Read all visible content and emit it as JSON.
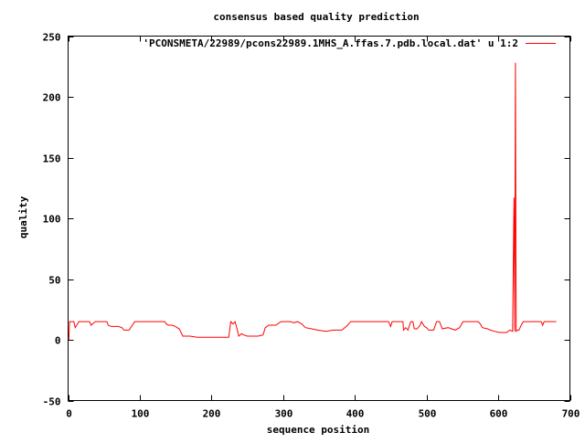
{
  "chart_data": {
    "type": "line",
    "title": "consensus based quality prediction",
    "xlabel": "sequence position",
    "ylabel": "quality",
    "xlim": [
      0,
      700
    ],
    "ylim": [
      -50,
      250
    ],
    "xticks": [
      0,
      100,
      200,
      300,
      400,
      500,
      600,
      700
    ],
    "yticks": [
      -50,
      0,
      50,
      100,
      150,
      200,
      250
    ],
    "grid": false,
    "legend_position": "top-right",
    "series": [
      {
        "name": "'PCONSMETA/22989/pcons22989.1MHS_A.ffas.7.pdb.local.dat' u 1:2",
        "color": "#ff0000",
        "x": [
          1,
          2,
          3,
          8,
          10,
          12,
          15,
          30,
          32,
          38,
          40,
          54,
          56,
          60,
          65,
          70,
          75,
          78,
          81,
          85,
          93,
          135,
          137,
          140,
          145,
          150,
          152,
          155,
          160,
          170,
          180,
          200,
          215,
          224,
          227,
          230,
          233,
          236,
          238,
          242,
          245,
          250,
          265,
          272,
          275,
          280,
          290,
          297,
          310,
          315,
          320,
          326,
          331,
          340,
          348,
          360,
          370,
          382,
          386,
          390,
          394,
          447,
          450,
          452,
          455,
          467,
          468,
          471,
          474,
          478,
          481,
          483,
          487,
          491,
          493,
          497,
          500,
          503,
          510,
          514,
          518,
          522,
          530,
          540,
          546,
          551,
          572,
          575,
          578,
          585,
          589,
          595,
          601,
          612,
          616,
          620,
          622,
          623,
          624,
          625,
          627,
          629,
          632,
          635,
          660,
          662,
          664,
          681
        ],
        "y": [
          0,
          15,
          15,
          15,
          10,
          12,
          15,
          15,
          12,
          15,
          15,
          15,
          12,
          11,
          11,
          11,
          10,
          8,
          8,
          8,
          15,
          15,
          13,
          12,
          12,
          11,
          10,
          9,
          3,
          3,
          2,
          2,
          2,
          2,
          15,
          13,
          15,
          8,
          3,
          5,
          4,
          3,
          3,
          4,
          10,
          12,
          12,
          15,
          15,
          14,
          15,
          13,
          10,
          9,
          8,
          7,
          8,
          8,
          10,
          12,
          15,
          15,
          11,
          15,
          15,
          15,
          8,
          10,
          8,
          15,
          15,
          9,
          9,
          12,
          15,
          11,
          10,
          8,
          8,
          15,
          15,
          9,
          10,
          8,
          10,
          15,
          15,
          13,
          10,
          9,
          8,
          7,
          6,
          6,
          8,
          7,
          117,
          7,
          228,
          7,
          8,
          8,
          12,
          15,
          15,
          12,
          15,
          15
        ]
      }
    ]
  }
}
